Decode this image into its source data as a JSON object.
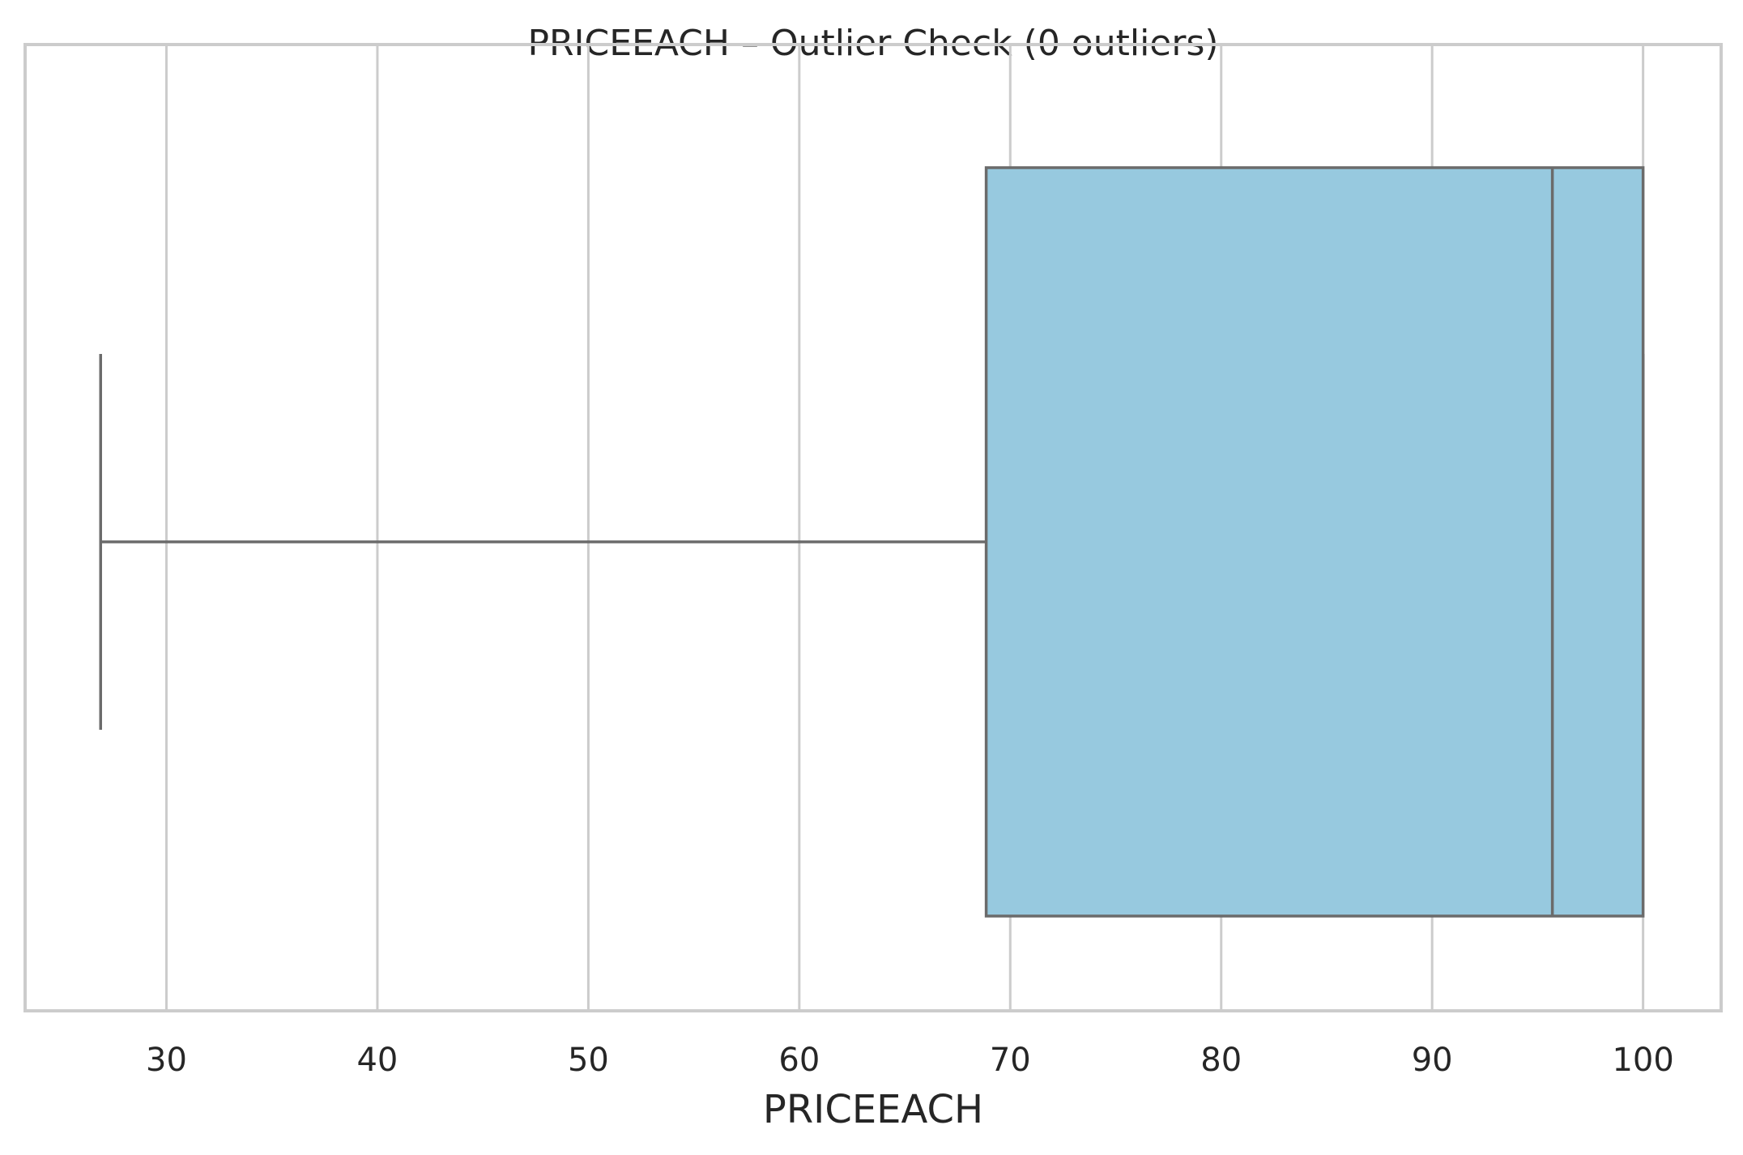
{
  "chart_data": {
    "type": "boxplot",
    "title": "PRICEEACH – Outlier Check (0 outliers)",
    "xlabel": "PRICEEACH",
    "ylabel": "",
    "xlim": [
      23.3,
      103.7
    ],
    "xticks": [
      30,
      40,
      50,
      60,
      70,
      80,
      90,
      100
    ],
    "xtick_labels": [
      "30",
      "40",
      "50",
      "60",
      "70",
      "80",
      "90",
      "100"
    ],
    "grid": "vertical",
    "box": {
      "whisker_low": 26.88,
      "q1": 68.86,
      "median": 95.7,
      "q3": 100.0,
      "whisker_high": 100.0,
      "outliers": []
    },
    "colors": {
      "box_fill": "#97c9df",
      "line": "#6b6b6b",
      "grid": "#cccccc",
      "frame": "#cccccc"
    }
  }
}
